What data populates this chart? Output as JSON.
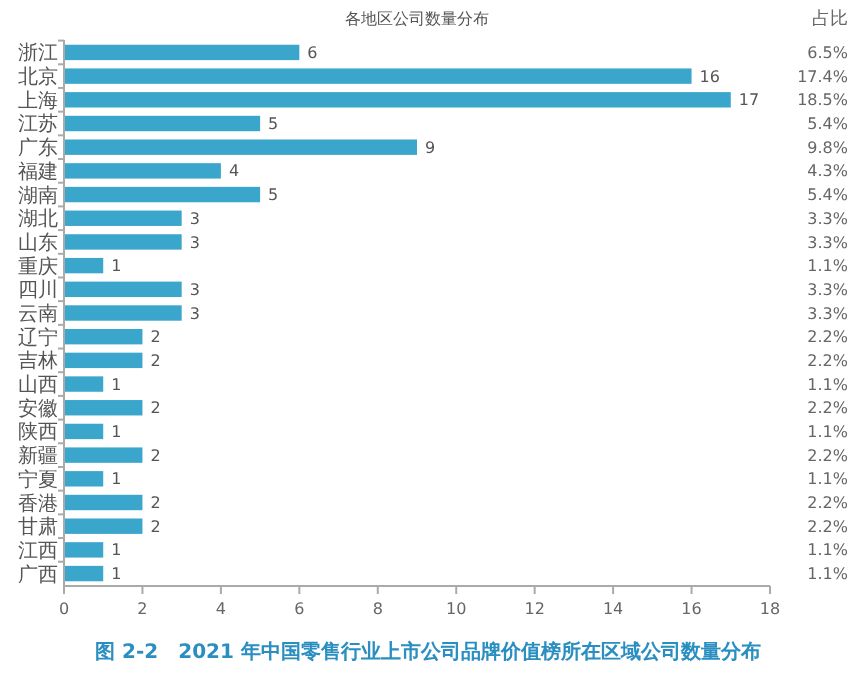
{
  "chart_data": {
    "type": "bar",
    "orientation": "horizontal",
    "title": "各地区公司数量分布",
    "categories": [
      "浙江",
      "北京",
      "上海",
      "江苏",
      "广东",
      "福建",
      "湖南",
      "湖北",
      "山东",
      "重庆",
      "四川",
      "云南",
      "辽宁",
      "吉林",
      "山西",
      "安徽",
      "陕西",
      "新疆",
      "宁夏",
      "香港",
      "甘肃",
      "江西",
      "广西"
    ],
    "values": [
      6,
      16,
      17,
      5,
      9,
      4,
      5,
      3,
      3,
      1,
      3,
      3,
      2,
      2,
      1,
      2,
      1,
      2,
      1,
      2,
      2,
      1,
      1
    ],
    "color": "#3aa6cc",
    "data_labels": true,
    "xlim": [
      0,
      18
    ],
    "xticks": [
      0,
      2,
      4,
      6,
      8,
      10,
      12,
      14,
      16,
      18
    ],
    "grid": false,
    "annotations": [
      "占比",
      "6.5%",
      "17.4%",
      "18.5%",
      "5.4%",
      "9.8%",
      "4.3%",
      "5.4%",
      "3.3%",
      "3.3%",
      "1.1%",
      "3.3%",
      "3.3%",
      "2.2%",
      "2.2%",
      "1.1%",
      "2.2%",
      "1.1%",
      "2.2%",
      "1.1%",
      "2.2%",
      "2.2%",
      "1.1%",
      "1.1%",
      "图 2-2　2021 年中国零售行业上市公司品牌价值榜所在区域公司数量分布"
    ]
  }
}
